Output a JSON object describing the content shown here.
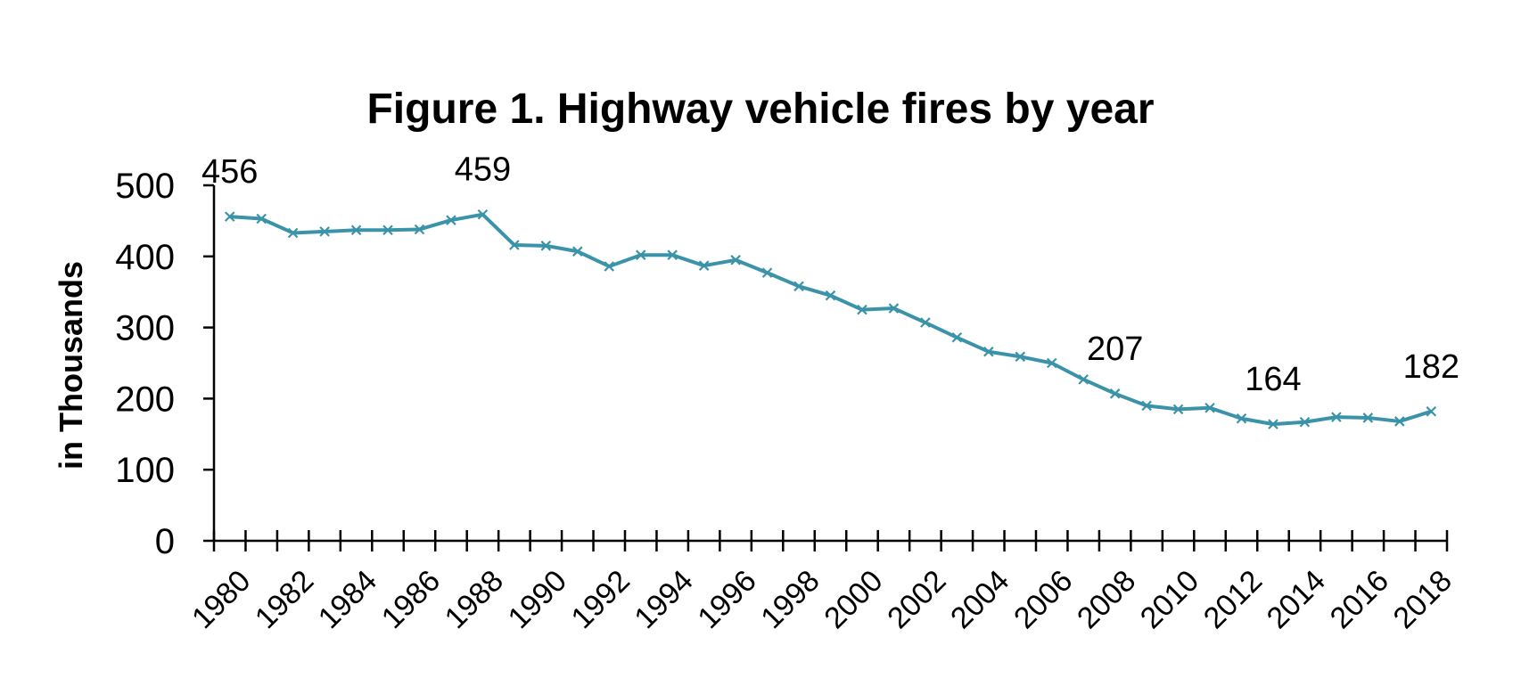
{
  "chart_data": {
    "type": "line",
    "title": "Figure 1. Highway vehicle fires by year",
    "ylabel": "in Thousands",
    "xlabel": "",
    "ylim": [
      0,
      500
    ],
    "yticks": [
      0,
      100,
      200,
      300,
      400,
      500
    ],
    "x": [
      1980,
      1981,
      1982,
      1983,
      1984,
      1985,
      1986,
      1987,
      1988,
      1989,
      1990,
      1991,
      1992,
      1993,
      1994,
      1995,
      1996,
      1997,
      1998,
      1999,
      2000,
      2001,
      2002,
      2003,
      2004,
      2005,
      2006,
      2007,
      2008,
      2009,
      2010,
      2011,
      2012,
      2013,
      2014,
      2015,
      2016,
      2017,
      2018
    ],
    "xtick_labels": [
      "1980",
      "1982",
      "1984",
      "1986",
      "1988",
      "1990",
      "1992",
      "1994",
      "1996",
      "1998",
      "2000",
      "2002",
      "2004",
      "2006",
      "2008",
      "2010",
      "2012",
      "2014",
      "2016",
      "2018"
    ],
    "series": [
      {
        "values": [
          456,
          453,
          433,
          435,
          437,
          437,
          438,
          451,
          459,
          416,
          415,
          407,
          386,
          402,
          402,
          387,
          395,
          377,
          358,
          345,
          325,
          327,
          307,
          286,
          266,
          259,
          250,
          227,
          207,
          190,
          185,
          187,
          172,
          164,
          167,
          174,
          173,
          168,
          182
        ]
      }
    ],
    "data_labels": [
      {
        "x": 1980,
        "text": "456"
      },
      {
        "x": 1988,
        "text": "459"
      },
      {
        "x": 2008,
        "text": "207"
      },
      {
        "x": 2013,
        "text": "164"
      },
      {
        "x": 2018,
        "text": "182"
      }
    ],
    "line_color": "#3a93a8",
    "grid": false,
    "legend": "none"
  }
}
